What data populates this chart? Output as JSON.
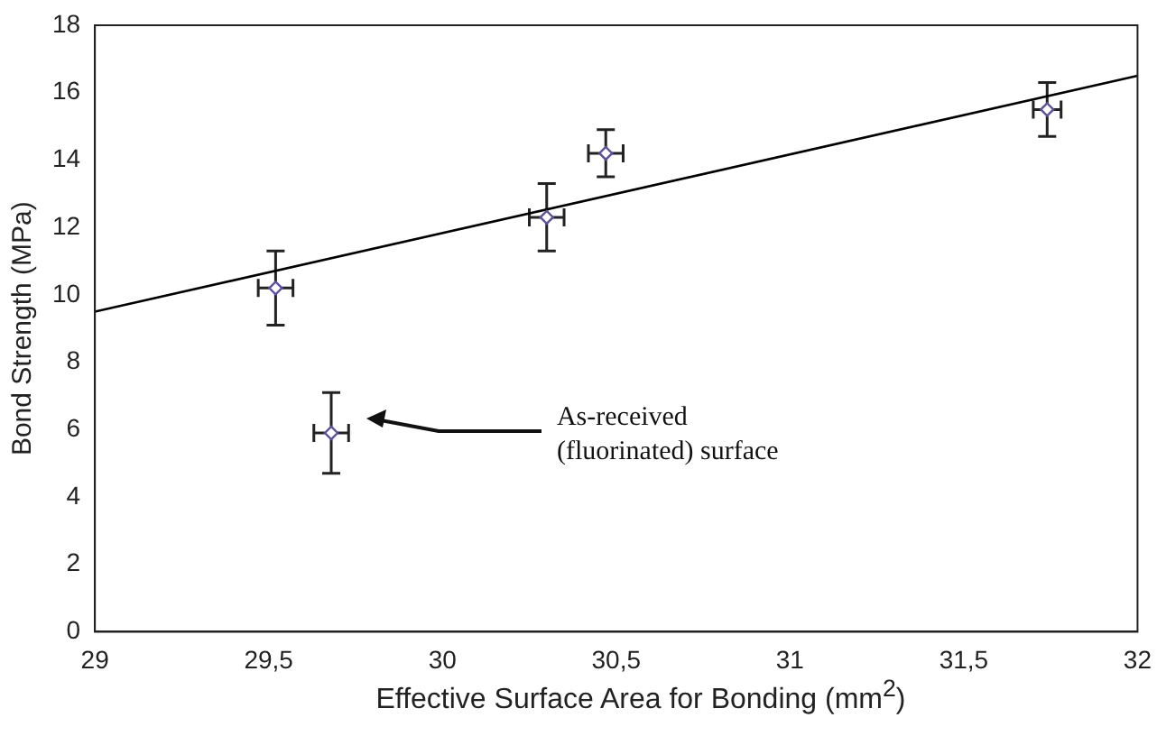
{
  "chart_data": {
    "type": "scatter",
    "xlabel": "Effective Surface Area for Bonding (mm$^{2}$)",
    "ylabel": "Bond Strength (MPa)",
    "xlim": [
      29,
      32
    ],
    "xticks": [
      29,
      {
        "value": 29.5,
        "label": "29,5"
      },
      30,
      {
        "value": 30.5,
        "label": "30,5"
      },
      31,
      {
        "value": 31.5,
        "label": "31,5"
      },
      32
    ],
    "ylim": [
      0,
      18
    ],
    "yticks": [
      0,
      2,
      4,
      6,
      8,
      10,
      12,
      14,
      16,
      18
    ],
    "grid": false,
    "legend": false,
    "marker": "diamond",
    "series": [
      {
        "color": "#5b4fa8",
        "x": [
          29.52,
          29.68,
          30.3,
          30.47,
          31.74
        ],
        "values": [
          10.2,
          5.9,
          12.3,
          14.2,
          15.5
        ],
        "errors": [
          1.1,
          1.2,
          1.0,
          0.7,
          0.8
        ],
        "xerrors": [
          0.05,
          0.05,
          0.05,
          0.05,
          0.04
        ]
      },
      {
        "type": "line",
        "color": "#000000",
        "x": [
          29,
          32
        ],
        "values": [
          9.5,
          16.5
        ],
        "marker": "none",
        "line_style": "solid"
      }
    ],
    "annotations": [
      "As-received\n(fluorinated) surface"
    ]
  }
}
